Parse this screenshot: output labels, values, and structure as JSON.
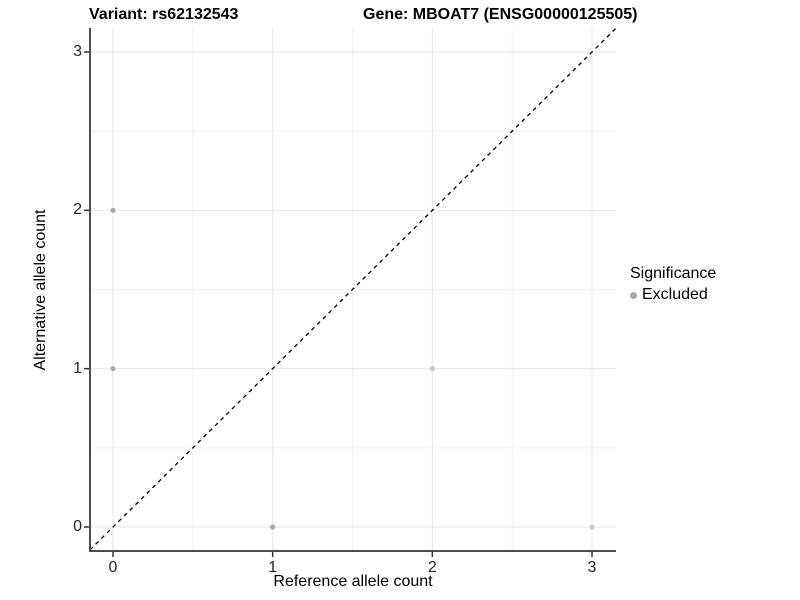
{
  "header": {
    "variant_title": "Variant: rs62132543",
    "gene_title": "Gene: MBOAT7 (ENSG00000125505)"
  },
  "chart_data": {
    "type": "scatter",
    "title": "Variant: rs62132543    Gene: MBOAT7 (ENSG00000125505)",
    "xlabel": "Reference allele count",
    "ylabel": "Alternative allele count",
    "xlim": [
      -0.15,
      3.15
    ],
    "ylim": [
      -0.15,
      3.15
    ],
    "x_ticks": [
      0,
      1,
      2,
      3
    ],
    "y_ticks": [
      0,
      1,
      2,
      3
    ],
    "x_minor_gridlines": [
      0.5,
      1.5,
      2.5
    ],
    "y_minor_gridlines": [
      0.5,
      1.5,
      2.5
    ],
    "grid": true,
    "points": [
      {
        "x": 0,
        "y": 2,
        "color": "#a9a9a9",
        "significance": "Excluded"
      },
      {
        "x": 0,
        "y": 1,
        "color": "#a9a9a9",
        "significance": "Excluded"
      },
      {
        "x": 2,
        "y": 1,
        "color": "#c6c6c6",
        "significance": "Excluded"
      },
      {
        "x": 1,
        "y": 0,
        "color": "#a9a9a9",
        "significance": "Excluded"
      },
      {
        "x": 3,
        "y": 0,
        "color": "#c6c6c6",
        "significance": "Excluded"
      }
    ],
    "reference_line": {
      "slope": 1,
      "intercept": 0,
      "style": "dashed",
      "color": "#000000"
    },
    "legend": {
      "title": "Significance",
      "position": "right",
      "items": [
        {
          "label": "Excluded",
          "color": "#a9a9a9"
        }
      ]
    },
    "colors": {
      "axis_line": "#4d4d4d",
      "major_grid": "#e7e7e7",
      "minor_grid": "#f2f2f2",
      "tick": "#333333"
    }
  }
}
